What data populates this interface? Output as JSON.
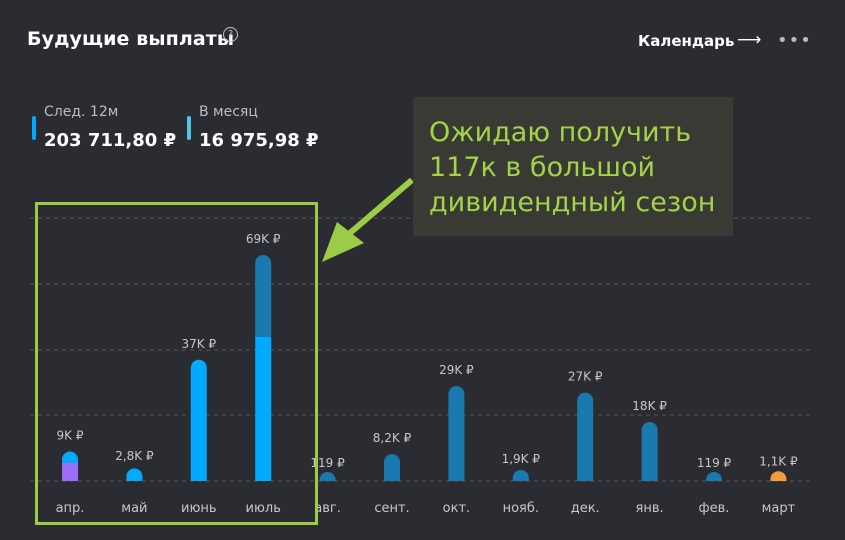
{
  "header": {
    "title": "Будущие выплаты",
    "help_icon": "question-circle-icon",
    "calendar_label": "Календарь",
    "arrow_icon": "arrow-right-icon",
    "more_icon": "ellipsis-icon"
  },
  "stats": [
    {
      "label": "След. 12м",
      "value": "203 711,80 ₽",
      "color": "#00aaff"
    },
    {
      "label": "В месяц",
      "value": "16 975,98 ₽",
      "color": "#4fc6e6"
    }
  ],
  "annotation": {
    "lines": [
      "Ожидаю получить",
      "117к в большой",
      "дивидендный сезон"
    ],
    "color": "#a2d348"
  },
  "chart_data": {
    "type": "bar",
    "categories": [
      "апр.",
      "май",
      "июнь",
      "июль",
      "авг.",
      "сент.",
      "окт.",
      "нояб.",
      "дек.",
      "янв.",
      "фев.",
      "март"
    ],
    "values": [
      9000,
      2800,
      37000,
      69000,
      119,
      8200,
      29000,
      1900,
      27000,
      18000,
      119,
      1100
    ],
    "data_labels": [
      "9K ₽",
      "2,8K ₽",
      "37K ₽",
      "69K ₽",
      "119 ₽",
      "8,2K ₽",
      "29K ₽",
      "1,9K ₽",
      "27K ₽",
      "18K ₽",
      "119 ₽",
      "1,1K ₽"
    ],
    "colors": [
      "#9b6cf5",
      "#00aaff",
      "#00aaff",
      "#00aaff",
      "#1a7ab0",
      "#1a7ab0",
      "#1a7ab0",
      "#1a7ab0",
      "#1a7ab0",
      "#1a7ab0",
      "#1a7ab0",
      "#f39c3d"
    ],
    "top_cap_colors": [
      "#00aaff",
      "",
      "",
      "#1a7ab0",
      "",
      "",
      "",
      "",
      "",
      "",
      "",
      ""
    ],
    "stacked": [
      {
        "bottom": 5500,
        "top": 3500
      },
      null,
      null,
      {
        "bottom": 44000,
        "top": 25000
      },
      null,
      null,
      null,
      null,
      null,
      null,
      null,
      null
    ],
    "ylim": [
      0,
      75000
    ],
    "grid": true
  }
}
